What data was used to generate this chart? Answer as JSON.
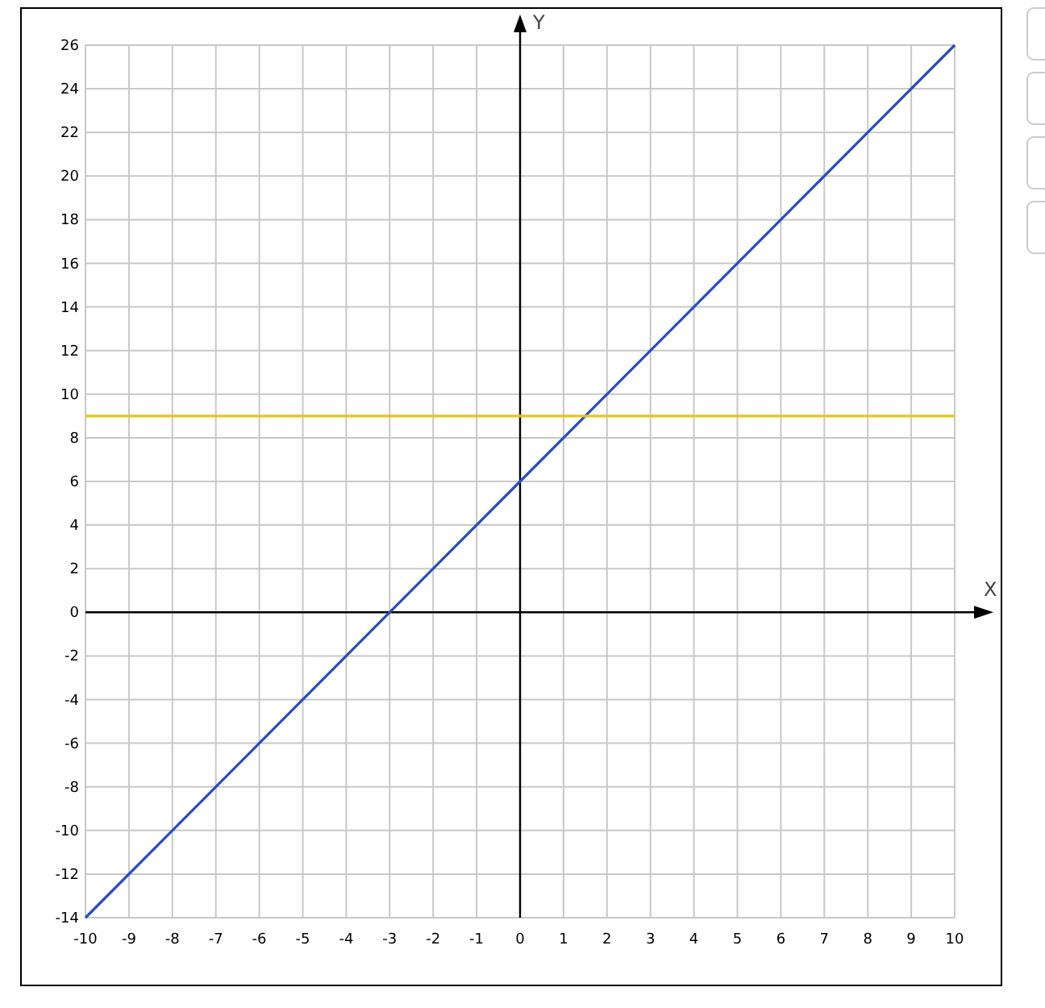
{
  "chart_data": {
    "type": "line",
    "xlabel": "X",
    "ylabel": "Y",
    "series": [
      {
        "color": "#2a4db8",
        "x": [
          -10,
          -8,
          -6,
          -4,
          -2,
          0,
          2,
          4,
          6,
          8,
          10
        ],
        "values": [
          -14,
          -10,
          -6,
          -2,
          2,
          6,
          10,
          14,
          18,
          22,
          26
        ]
      },
      {
        "color": "#e6c619",
        "x": [
          -10,
          -8,
          -6,
          -4,
          -2,
          0,
          2,
          4,
          6,
          8,
          10
        ],
        "values": [
          9,
          9,
          9,
          9,
          9,
          9,
          9,
          9,
          9,
          9,
          9
        ]
      }
    ],
    "xlim": [
      -10,
      10
    ],
    "ylim": [
      -14,
      26
    ],
    "xticks": [
      -10,
      -9,
      -8,
      -7,
      -6,
      -5,
      -4,
      -3,
      -2,
      -1,
      0,
      1,
      2,
      3,
      4,
      5,
      6,
      7,
      8,
      9,
      10
    ],
    "yticks": [
      -14,
      -12,
      -10,
      -8,
      -6,
      -4,
      -2,
      0,
      2,
      4,
      6,
      8,
      10,
      12,
      14,
      16,
      18,
      20,
      22,
      24,
      26
    ],
    "grid": true,
    "marker": "none",
    "line_style": "solid"
  }
}
